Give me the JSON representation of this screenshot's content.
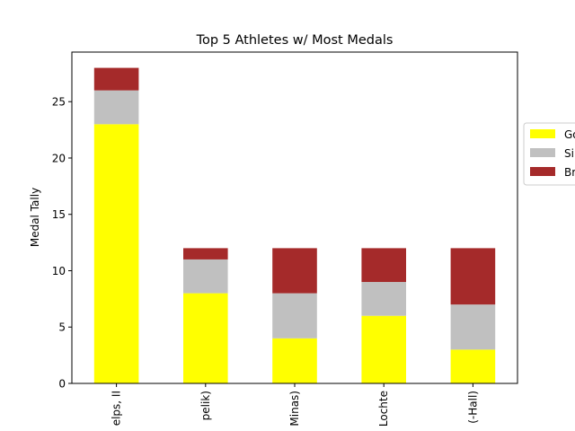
{
  "chart_data": {
    "type": "bar",
    "stacked": true,
    "title": "Top 5 Athletes w/ Most Medals",
    "xlabel": "",
    "ylabel": "Medal Tally",
    "ylim": [
      0,
      29.4
    ],
    "yticks": [
      0,
      5,
      10,
      15,
      20,
      25
    ],
    "categories": [
      "elps, II",
      "pelik)",
      "Minas)",
      "Lochte",
      "(-Hall)"
    ],
    "series": [
      {
        "name": "Go",
        "color": "#ffff00",
        "values": [
          23,
          8,
          4,
          6,
          3
        ]
      },
      {
        "name": "Si",
        "color": "#c0c0c0",
        "values": [
          3,
          3,
          4,
          3,
          4
        ]
      },
      {
        "name": "Br",
        "color": "#a52a2a",
        "values": [
          2,
          1,
          4,
          3,
          5
        ]
      }
    ],
    "legend": {
      "placement": "right"
    },
    "grid": false
  }
}
